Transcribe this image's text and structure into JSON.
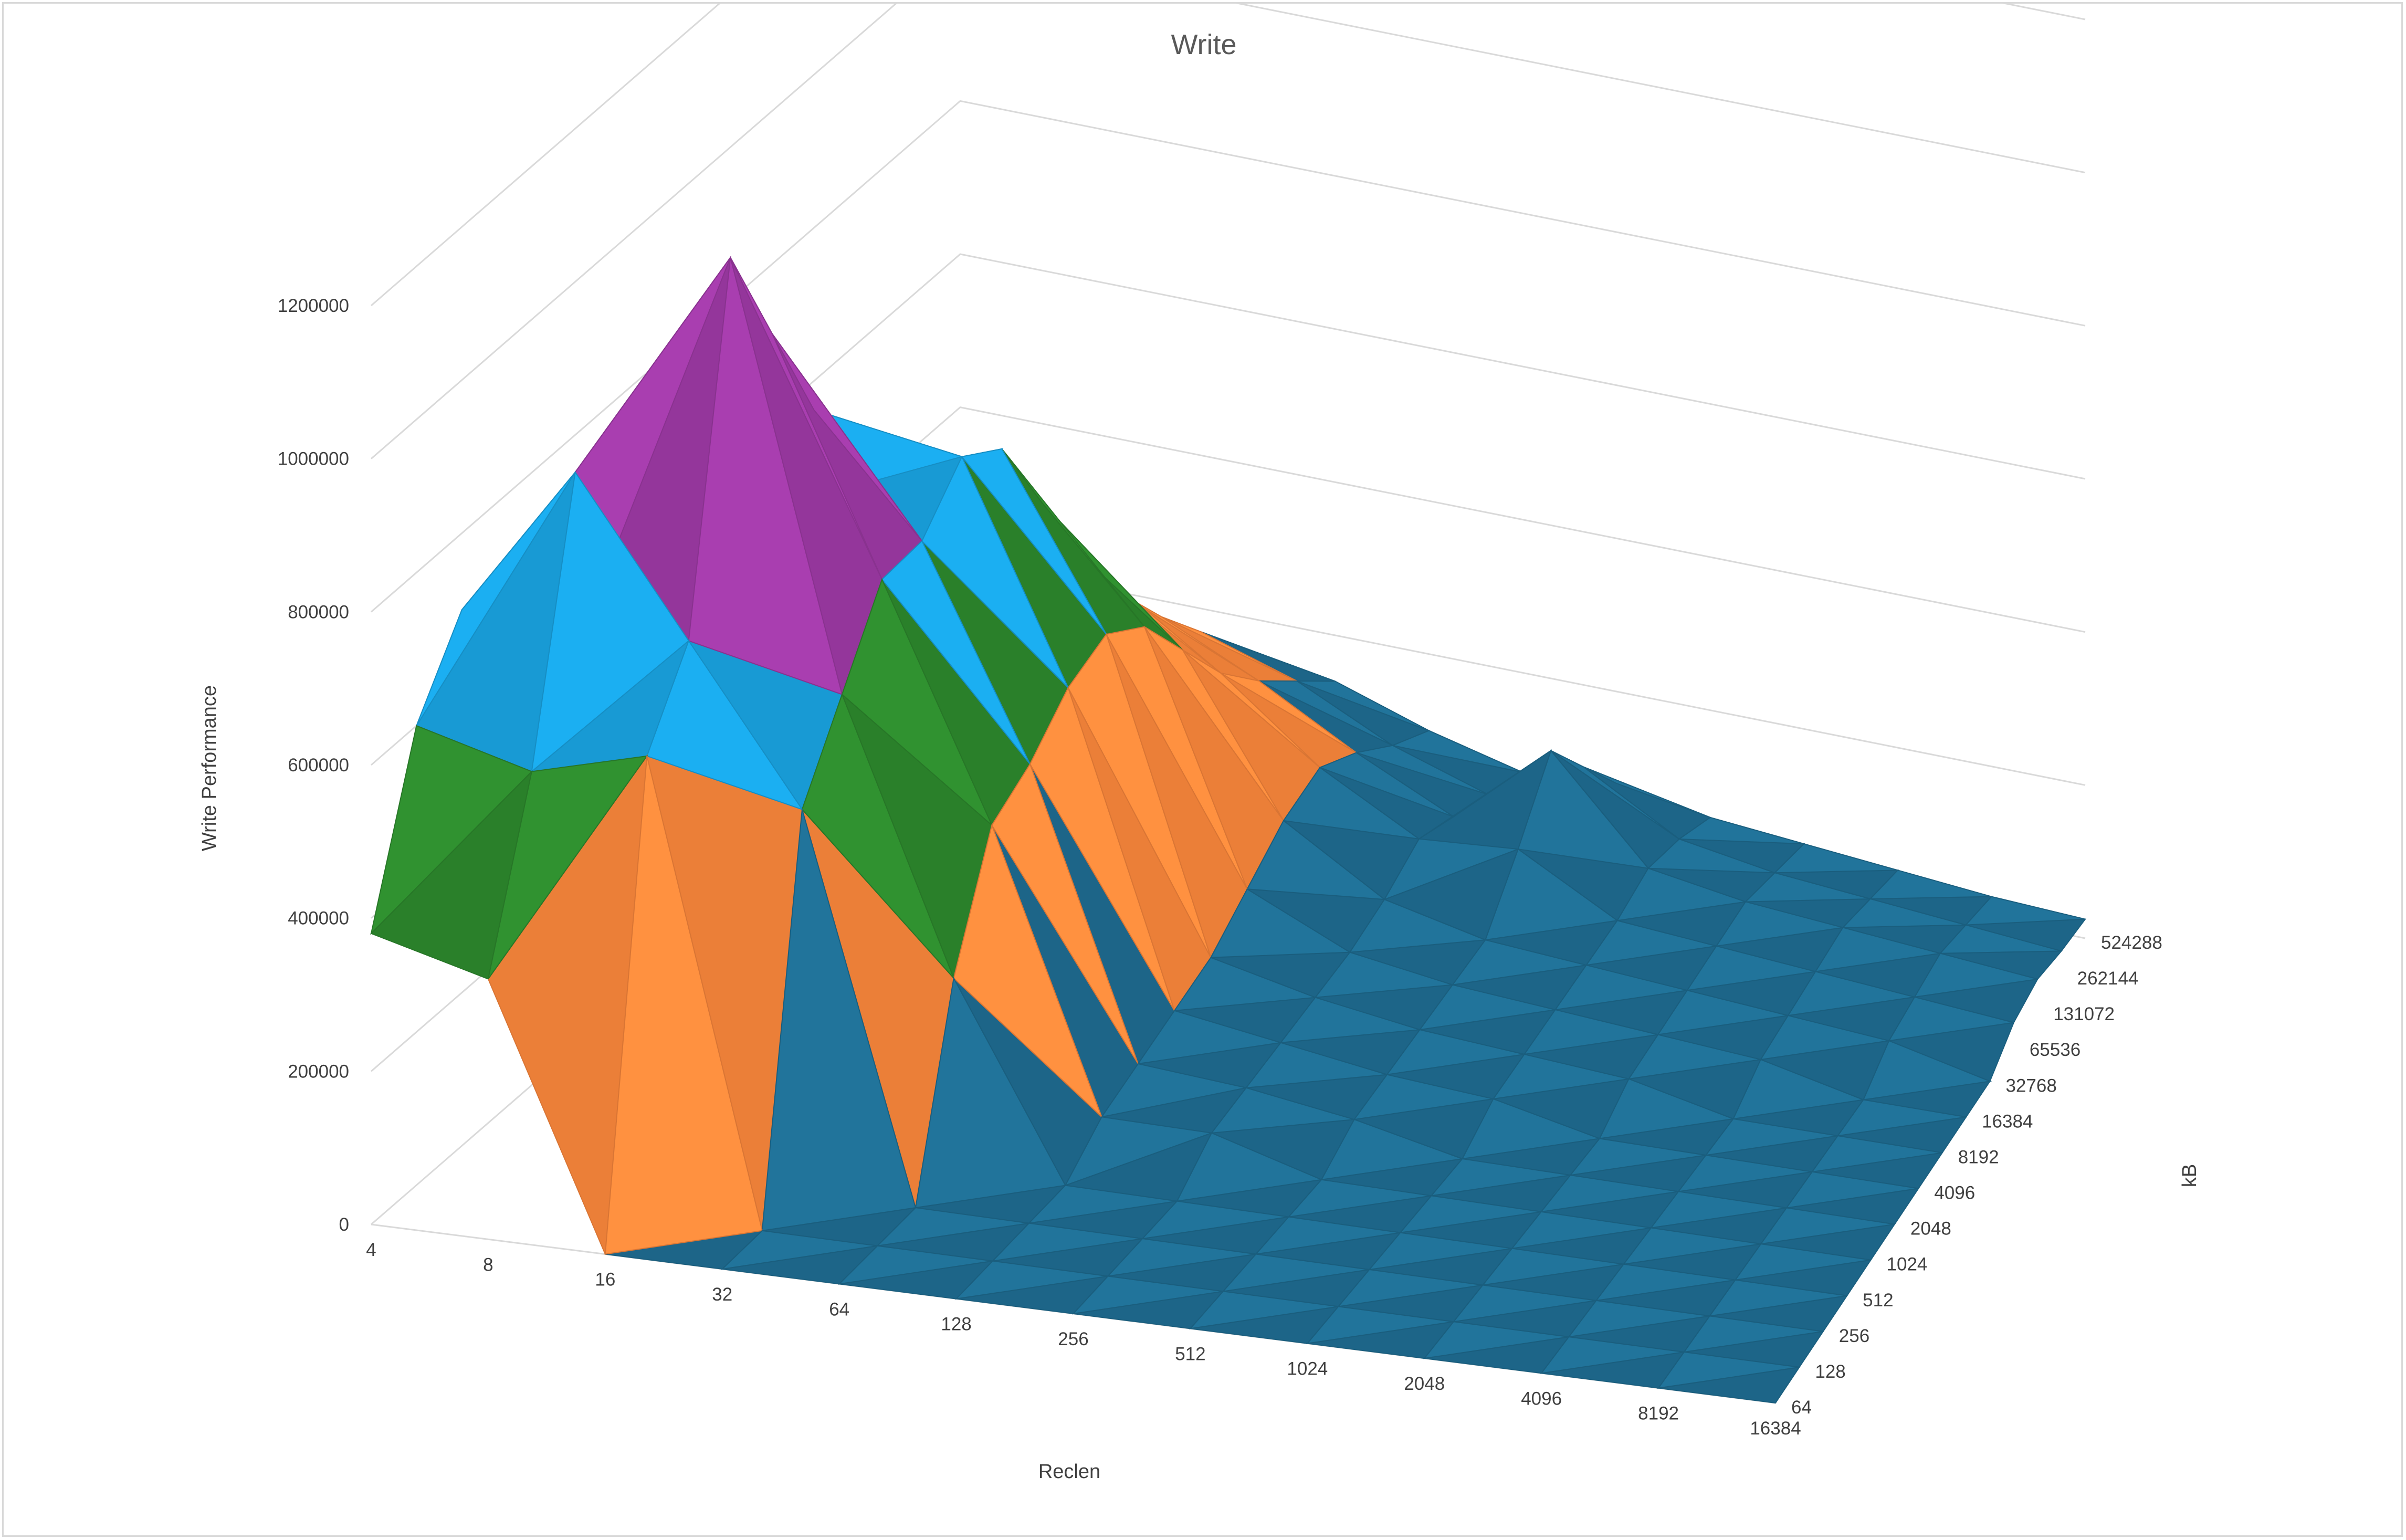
{
  "chart_data": {
    "type": "surface",
    "title": "Write",
    "xlabel": "Reclen",
    "ylabel": "kB",
    "zlabel": "Write Performance",
    "zlim": [
      0,
      1200000
    ],
    "z_ticks": [
      "0",
      "200000",
      "400000",
      "600000",
      "800000",
      "1000000",
      "1200000"
    ],
    "x_categories": [
      "4",
      "8",
      "16",
      "32",
      "64",
      "128",
      "256",
      "512",
      "1024",
      "2048",
      "4096",
      "8192",
      "16384"
    ],
    "y_categories": [
      "64",
      "128",
      "256",
      "512",
      "1024",
      "2048",
      "4096",
      "8192",
      "16384",
      "32768",
      "65536",
      "131072",
      "262144",
      "524288"
    ],
    "grid": true,
    "band_colors": [
      "#1F6E94",
      "#FF8A3D",
      "#2E8B2E",
      "#1AA7E6",
      "#A13BA8",
      "#5FB83A"
    ],
    "values": [
      [
        380000,
        340000,
        0,
        null,
        null,
        null,
        null,
        null,
        null,
        null,
        null,
        null,
        null
      ],
      [
        600000,
        560000,
        600000,
        0,
        null,
        null,
        null,
        null,
        null,
        null,
        null,
        null,
        null
      ],
      [
        700000,
        900000,
        700000,
        500000,
        0,
        null,
        null,
        null,
        null,
        null,
        null,
        null,
        null
      ],
      [
        650000,
        760000,
        1150000,
        600000,
        250000,
        0,
        null,
        null,
        null,
        null,
        null,
        null,
        null
      ],
      [
        560000,
        700000,
        1000000,
        700000,
        400000,
        40000,
        40000,
        null,
        null,
        null,
        null,
        null,
        null
      ],
      [
        450000,
        600000,
        850000,
        700000,
        430000,
        60000,
        50000,
        30000,
        null,
        null,
        null,
        null,
        null
      ],
      [
        380000,
        500000,
        700000,
        760000,
        480000,
        80000,
        60000,
        40000,
        30000,
        null,
        null,
        null,
        null
      ],
      [
        320000,
        420000,
        560000,
        720000,
        500000,
        100000,
        70000,
        50000,
        40000,
        30000,
        null,
        null,
        null
      ],
      [
        280000,
        350000,
        450000,
        600000,
        460000,
        140000,
        80000,
        60000,
        50000,
        40000,
        30000,
        null,
        null
      ],
      [
        240000,
        300000,
        380000,
        480000,
        380000,
        180000,
        100000,
        70000,
        60000,
        50000,
        40000,
        30000,
        null
      ],
      [
        200000,
        250000,
        300000,
        380000,
        300000,
        200000,
        130000,
        140000,
        70000,
        60000,
        50000,
        40000,
        30000
      ],
      [
        160000,
        200000,
        240000,
        300000,
        240000,
        170000,
        110000,
        220000,
        90000,
        70000,
        60000,
        50000,
        40000
      ],
      [
        120000,
        150000,
        180000,
        230000,
        190000,
        130000,
        90000,
        150000,
        80000,
        60000,
        50000,
        40000,
        30000
      ],
      [
        80000,
        100000,
        130000,
        160000,
        140000,
        100000,
        70000,
        80000,
        60000,
        50000,
        40000,
        30000,
        25000
      ]
    ]
  }
}
